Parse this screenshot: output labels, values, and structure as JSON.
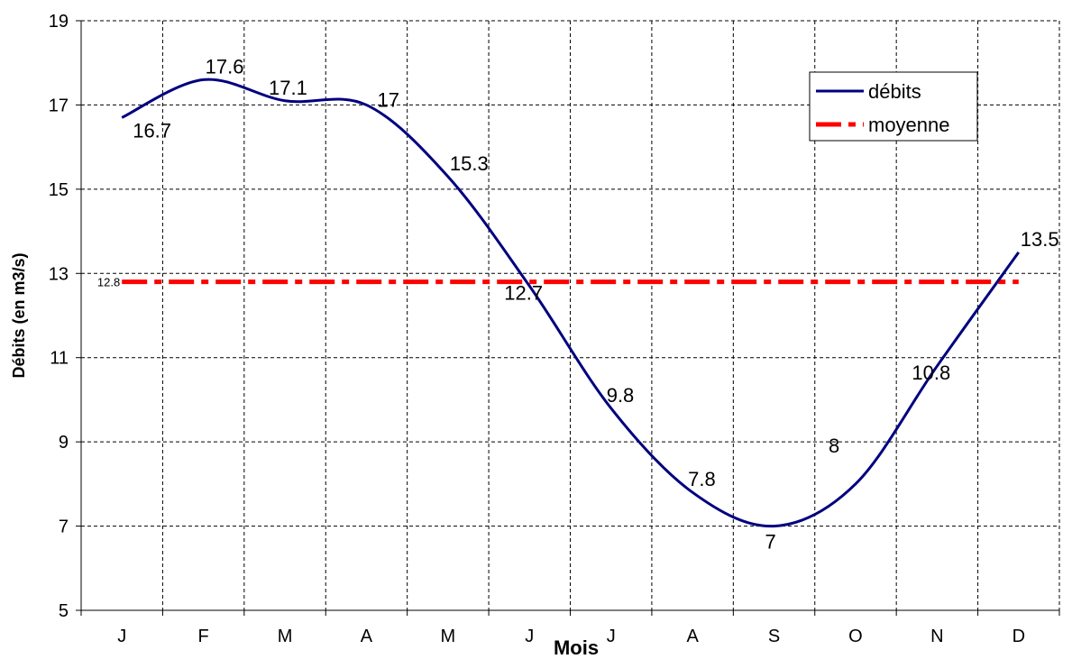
{
  "chart_data": {
    "type": "line",
    "categories": [
      "J",
      "F",
      "M",
      "A",
      "M",
      "J",
      "J",
      "A",
      "S",
      "O",
      "N",
      "D"
    ],
    "series": [
      {
        "name": "débits",
        "values": [
          16.7,
          17.6,
          17.1,
          17,
          15.3,
          12.7,
          9.8,
          7.8,
          7,
          8,
          10.8,
          13.5
        ],
        "color": "#000080",
        "style": "solid-smoothed"
      },
      {
        "name": "moyenne",
        "values": [
          12.8,
          12.8,
          12.8,
          12.8,
          12.8,
          12.8,
          12.8,
          12.8,
          12.8,
          12.8,
          12.8,
          12.8
        ],
        "color": "#ff0000",
        "style": "dash-dot"
      }
    ],
    "data_labels": [
      "16.7",
      "17.6",
      "17.1",
      "17",
      "15.3",
      "12.7",
      "9.8",
      "7.8",
      "7",
      "8",
      "10.8",
      "13.5"
    ],
    "mean_label": "12.8",
    "xlabel": "Mois",
    "ylabel": "Débits (en m3/s)",
    "ylim": [
      5,
      19
    ],
    "yticks": [
      5,
      7,
      9,
      11,
      13,
      15,
      17,
      19
    ],
    "grid": true,
    "legend": {
      "placement": "top-right",
      "entries": [
        "débits",
        "moyenne"
      ]
    }
  }
}
